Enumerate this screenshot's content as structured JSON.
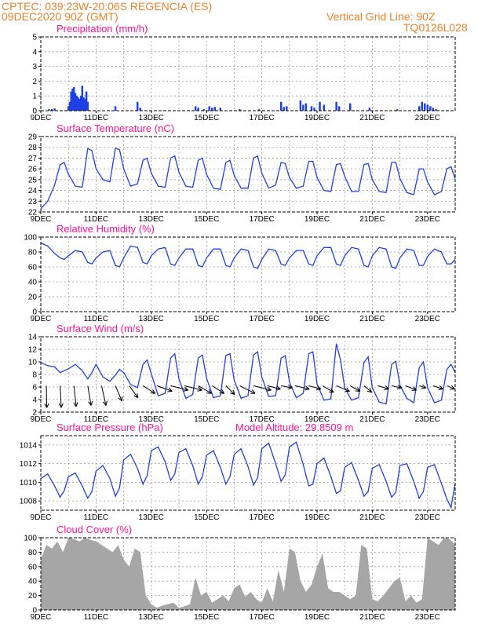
{
  "header": {
    "line1": "CPTEC:   039:23W-20:06S   REGENCIA (ES)",
    "line2": "09DEC2020 90Z (GMT)",
    "grid_note": "Vertical Grid Line: 90Z",
    "run_code": "TQ0126L028"
  },
  "colors": {
    "header": "#e8822a",
    "title": "#ff1493",
    "line": "#2040e0",
    "bar": "#1f3fe6",
    "cloud": "#a6a6a6",
    "grid": "#999999"
  },
  "chart_data": [
    {
      "type": "bar",
      "title": "Precipitation  (mm/h)",
      "ylim": [
        0,
        5
      ],
      "yticks": [
        0,
        1,
        2,
        3,
        4,
        5
      ],
      "x_domain_days": [
        9,
        24
      ],
      "x_ticks": [
        "9DEC",
        "11DEC",
        "13DEC",
        "15DEC",
        "17DEC",
        "19DEC",
        "21DEC",
        "23DEC"
      ],
      "bar_width_days": 0.07,
      "x": [
        9.3,
        9.4,
        9.5,
        10.0,
        10.05,
        10.1,
        10.15,
        10.2,
        10.25,
        10.3,
        10.35,
        10.4,
        10.45,
        10.5,
        10.55,
        10.6,
        10.65,
        10.7,
        11.7,
        12.5,
        12.6,
        14.6,
        14.7,
        14.9,
        15.1,
        15.2,
        15.3,
        15.5,
        16.2,
        16.9,
        17.7,
        17.8,
        17.9,
        18.4,
        18.5,
        18.6,
        18.8,
        18.9,
        19.1,
        19.25,
        19.7,
        19.8,
        20.2,
        20.9,
        21.9,
        22.7,
        22.8,
        22.9,
        23.0,
        23.1,
        23.2,
        23.3
      ],
      "values": [
        0.1,
        0.1,
        0.15,
        0.3,
        0.6,
        1.3,
        1.5,
        1.6,
        1.2,
        1.0,
        0.9,
        0.8,
        1.0,
        1.7,
        0.9,
        0.8,
        1.3,
        0.6,
        0.3,
        0.6,
        0.2,
        0.3,
        0.2,
        0.1,
        0.3,
        0.2,
        0.25,
        0.2,
        0.1,
        0.1,
        0.6,
        0.25,
        0.3,
        0.7,
        0.4,
        0.5,
        0.3,
        0.2,
        0.6,
        0.4,
        0.6,
        0.3,
        0.5,
        0.2,
        0.1,
        0.3,
        0.6,
        0.5,
        0.4,
        0.3,
        0.2,
        0.1
      ]
    },
    {
      "type": "line",
      "title": "Surface Temperature  (nC)",
      "ylim": [
        22,
        29
      ],
      "yticks": [
        22,
        23,
        24,
        25,
        26,
        27,
        28,
        29
      ],
      "x_domain_days": [
        9,
        24
      ],
      "x_ticks": [
        "9DEC",
        "11DEC",
        "13DEC",
        "15DEC",
        "17DEC",
        "19DEC",
        "21DEC",
        "23DEC"
      ],
      "x": [
        9.0,
        9.25,
        9.5,
        9.7,
        9.85,
        10.0,
        10.25,
        10.5,
        10.7,
        10.85,
        11.0,
        11.25,
        11.5,
        11.7,
        11.85,
        12.0,
        12.25,
        12.5,
        12.7,
        12.85,
        13.0,
        13.25,
        13.5,
        13.7,
        13.85,
        14.0,
        14.25,
        14.5,
        14.7,
        14.85,
        15.0,
        15.25,
        15.5,
        15.7,
        15.85,
        16.0,
        16.25,
        16.5,
        16.7,
        16.85,
        17.0,
        17.25,
        17.5,
        17.7,
        17.85,
        18.0,
        18.25,
        18.5,
        18.7,
        18.85,
        19.0,
        19.25,
        19.5,
        19.7,
        19.85,
        20.0,
        20.25,
        20.5,
        20.7,
        20.85,
        21.0,
        21.25,
        21.5,
        21.7,
        21.85,
        22.0,
        22.25,
        22.5,
        22.7,
        22.85,
        23.0,
        23.25,
        23.5,
        23.7,
        23.85,
        24.0
      ],
      "values": [
        22.3,
        23.0,
        24.5,
        26.4,
        26.6,
        25.5,
        24.4,
        24.3,
        27.9,
        27.7,
        26.0,
        25.0,
        24.8,
        27.9,
        27.8,
        26.0,
        24.4,
        24.6,
        26.8,
        27.0,
        25.6,
        24.4,
        24.3,
        27.0,
        27.2,
        25.7,
        24.4,
        24.3,
        26.8,
        27.0,
        25.5,
        24.2,
        24.1,
        26.6,
        26.8,
        25.4,
        24.2,
        24.2,
        27.0,
        27.2,
        25.6,
        24.2,
        24.5,
        26.6,
        26.5,
        25.2,
        24.2,
        24.4,
        26.7,
        26.7,
        25.2,
        24.0,
        23.9,
        26.4,
        26.5,
        25.3,
        23.9,
        23.9,
        26.4,
        26.5,
        25.0,
        23.9,
        23.8,
        26.6,
        26.6,
        25.1,
        23.8,
        23.6,
        26.0,
        26.0,
        24.8,
        23.6,
        23.9,
        26.0,
        26.2,
        25.1
      ]
    },
    {
      "type": "line",
      "title": "Relative Humidity  (%)",
      "ylim": [
        0,
        100
      ],
      "yticks": [
        0,
        20,
        40,
        60,
        80,
        100
      ],
      "x_domain_days": [
        9,
        24
      ],
      "x_ticks": [
        "9DEC",
        "11DEC",
        "13DEC",
        "15DEC",
        "17DEC",
        "19DEC",
        "21DEC",
        "23DEC"
      ],
      "x": [
        9.0,
        9.25,
        9.5,
        9.7,
        9.85,
        10.0,
        10.25,
        10.5,
        10.7,
        10.85,
        11.0,
        11.25,
        11.5,
        11.7,
        11.85,
        12.0,
        12.25,
        12.5,
        12.7,
        12.85,
        13.0,
        13.25,
        13.5,
        13.7,
        13.85,
        14.0,
        14.25,
        14.5,
        14.7,
        14.85,
        15.0,
        15.25,
        15.5,
        15.7,
        15.85,
        16.0,
        16.25,
        16.5,
        16.7,
        16.85,
        17.0,
        17.25,
        17.5,
        17.7,
        17.85,
        18.0,
        18.25,
        18.5,
        18.7,
        18.85,
        19.0,
        19.25,
        19.5,
        19.7,
        19.85,
        20.0,
        20.25,
        20.5,
        20.7,
        20.85,
        21.0,
        21.25,
        21.5,
        21.7,
        21.85,
        22.0,
        22.25,
        22.5,
        22.7,
        22.85,
        23.0,
        23.25,
        23.5,
        23.7,
        23.85,
        24.0
      ],
      "values": [
        92,
        88,
        78,
        72,
        70,
        75,
        82,
        80,
        66,
        64,
        72,
        80,
        82,
        62,
        60,
        72,
        88,
        86,
        66,
        64,
        75,
        84,
        86,
        64,
        62,
        72,
        84,
        84,
        62,
        60,
        72,
        84,
        84,
        62,
        60,
        72,
        84,
        82,
        60,
        58,
        70,
        84,
        82,
        64,
        62,
        72,
        82,
        82,
        64,
        62,
        75,
        86,
        86,
        64,
        62,
        75,
        86,
        84,
        62,
        60,
        75,
        86,
        84,
        60,
        58,
        72,
        84,
        82,
        62,
        62,
        74,
        84,
        80,
        64,
        64,
        70
      ]
    },
    {
      "type": "line",
      "title": "Surface Wind  (m/s)",
      "ylim": [
        2,
        14
      ],
      "yticks": [
        2,
        4,
        6,
        8,
        10,
        12,
        14
      ],
      "x_domain_days": [
        9,
        24
      ],
      "x_ticks": [
        "9DEC",
        "11DEC",
        "13DEC",
        "15DEC",
        "17DEC",
        "19DEC",
        "21DEC",
        "23DEC"
      ],
      "x": [
        9.0,
        9.25,
        9.5,
        9.7,
        9.85,
        10.0,
        10.25,
        10.5,
        10.7,
        10.85,
        11.0,
        11.25,
        11.5,
        11.7,
        11.85,
        12.0,
        12.25,
        12.5,
        12.7,
        12.85,
        13.0,
        13.25,
        13.5,
        13.7,
        13.85,
        14.0,
        14.25,
        14.5,
        14.7,
        14.85,
        15.0,
        15.25,
        15.5,
        15.7,
        15.85,
        16.0,
        16.25,
        16.5,
        16.7,
        16.85,
        17.0,
        17.25,
        17.5,
        17.7,
        17.85,
        18.0,
        18.25,
        18.5,
        18.7,
        18.85,
        19.0,
        19.25,
        19.5,
        19.7,
        19.85,
        20.0,
        20.25,
        20.5,
        20.7,
        20.85,
        21.0,
        21.25,
        21.5,
        21.7,
        21.85,
        22.0,
        22.25,
        22.5,
        22.7,
        22.85,
        23.0,
        23.25,
        23.5,
        23.7,
        23.85,
        24.0
      ],
      "values": [
        9.9,
        9.4,
        9.2,
        8.3,
        8.6,
        8.9,
        9.6,
        8.6,
        7.3,
        8.3,
        9.6,
        7.6,
        6.9,
        7.9,
        8.8,
        8.3,
        6.4,
        5.9,
        9.6,
        10.3,
        8.1,
        4.6,
        5.0,
        10.6,
        11.3,
        7.3,
        4.2,
        4.8,
        10.6,
        11.1,
        7.4,
        4.3,
        4.6,
        11.0,
        11.3,
        7.1,
        4.2,
        4.6,
        11.1,
        11.6,
        7.6,
        4.5,
        4.6,
        10.6,
        11.0,
        6.8,
        4.3,
        5.0,
        11.3,
        11.6,
        6.5,
        3.9,
        4.1,
        12.9,
        10.3,
        5.9,
        3.9,
        4.3,
        9.9,
        10.8,
        5.9,
        3.6,
        3.3,
        9.6,
        10.1,
        6.3,
        4.2,
        3.5,
        9.1,
        10.0,
        5.9,
        3.5,
        3.9,
        8.8,
        9.6,
        8.3
      ],
      "arrows_x": [
        9.2,
        9.7,
        10.2,
        10.7,
        11.2,
        11.7,
        12.2,
        12.7,
        13.2,
        13.7,
        14.2,
        14.7,
        15.2,
        15.7,
        16.2,
        16.7,
        17.2,
        17.7,
        18.2,
        18.7,
        19.2,
        19.7,
        20.2,
        20.7,
        21.2,
        21.7,
        22.2,
        22.7,
        23.2,
        23.7
      ],
      "arrows_dx": [
        0.02,
        0.05,
        0.1,
        0.15,
        0.2,
        0.3,
        0.4,
        0.55,
        0.7,
        0.8,
        0.8,
        0.6,
        0.55,
        0.4,
        0.7,
        0.8,
        0.6,
        0.5,
        0.65,
        0.55,
        0.5,
        0.6,
        0.45,
        0.35,
        0.5,
        0.45,
        0.5,
        0.3,
        0.45,
        0.35
      ],
      "arrows_dy": [
        -1.0,
        -1.0,
        -0.95,
        -0.9,
        -0.9,
        -0.7,
        -0.55,
        -0.35,
        -0.25,
        -0.2,
        -0.2,
        -0.35,
        -0.35,
        -0.4,
        -0.35,
        -0.2,
        -0.15,
        -0.1,
        -0.15,
        -0.15,
        -0.3,
        -0.25,
        -0.25,
        -0.3,
        -0.15,
        -0.1,
        -0.2,
        -0.1,
        -0.15,
        -0.15
      ]
    },
    {
      "type": "line",
      "title": "Surface Pressure  (hPa)",
      "note": "Model Altitude:  29.8509  m",
      "ylim": [
        1007,
        1015
      ],
      "yticks": [
        1008,
        1010,
        1012,
        1014
      ],
      "x_domain_days": [
        9,
        24
      ],
      "x_ticks": [
        "9DEC",
        "11DEC",
        "13DEC",
        "15DEC",
        "17DEC",
        "19DEC",
        "21DEC",
        "23DEC"
      ],
      "x": [
        9.0,
        9.25,
        9.5,
        9.7,
        9.85,
        10.0,
        10.25,
        10.5,
        10.7,
        10.85,
        11.0,
        11.25,
        11.5,
        11.7,
        11.85,
        12.0,
        12.25,
        12.5,
        12.7,
        12.85,
        13.0,
        13.25,
        13.5,
        13.7,
        13.85,
        14.0,
        14.25,
        14.5,
        14.7,
        14.85,
        15.0,
        15.25,
        15.5,
        15.7,
        15.85,
        16.0,
        16.25,
        16.5,
        16.7,
        16.85,
        17.0,
        17.25,
        17.5,
        17.7,
        17.85,
        18.0,
        18.25,
        18.5,
        18.7,
        18.85,
        19.0,
        19.25,
        19.5,
        19.7,
        19.85,
        20.0,
        20.25,
        20.5,
        20.7,
        20.85,
        21.0,
        21.25,
        21.5,
        21.7,
        21.85,
        22.0,
        22.25,
        22.5,
        22.7,
        22.85,
        23.0,
        23.25,
        23.5,
        23.7,
        23.85,
        24.0
      ],
      "values": [
        1010.4,
        1010.9,
        1009.6,
        1008.4,
        1009.1,
        1010.6,
        1011.0,
        1009.6,
        1008.3,
        1009.0,
        1011.2,
        1011.8,
        1010.4,
        1008.5,
        1009.4,
        1012.4,
        1013.0,
        1011.5,
        1009.8,
        1010.7,
        1013.4,
        1013.8,
        1012.2,
        1010.2,
        1010.9,
        1013.2,
        1013.6,
        1011.8,
        1009.8,
        1010.6,
        1012.9,
        1013.4,
        1011.6,
        1009.8,
        1010.6,
        1013.0,
        1013.6,
        1011.7,
        1009.7,
        1010.5,
        1013.6,
        1014.2,
        1012.0,
        1010.1,
        1010.8,
        1013.8,
        1014.3,
        1011.9,
        1009.6,
        1009.8,
        1012.0,
        1012.6,
        1010.6,
        1008.8,
        1009.1,
        1011.6,
        1012.1,
        1010.2,
        1008.5,
        1009.0,
        1011.5,
        1011.9,
        1010.1,
        1008.4,
        1008.9,
        1011.8,
        1012.0,
        1010.1,
        1008.3,
        1009.0,
        1011.6,
        1011.9,
        1009.9,
        1008.2,
        1007.3,
        1009.9
      ]
    },
    {
      "type": "area",
      "title": "Cloud Cover  (%)",
      "ylim": [
        0,
        100
      ],
      "yticks": [
        0,
        20,
        40,
        60,
        80,
        100
      ],
      "x_domain_days": [
        9,
        24
      ],
      "x_ticks": [
        "9DEC",
        "11DEC",
        "13DEC",
        "15DEC",
        "17DEC",
        "19DEC",
        "21DEC",
        "23DEC"
      ],
      "x": [
        9.0,
        9.2,
        9.4,
        9.6,
        9.8,
        10.0,
        10.2,
        10.4,
        10.6,
        10.8,
        11.0,
        11.2,
        11.4,
        11.6,
        11.8,
        12.0,
        12.2,
        12.4,
        12.6,
        12.8,
        13.0,
        13.2,
        13.4,
        13.6,
        13.8,
        14.0,
        14.2,
        14.4,
        14.6,
        14.8,
        15.0,
        15.2,
        15.4,
        15.6,
        15.8,
        16.0,
        16.2,
        16.4,
        16.6,
        16.8,
        17.0,
        17.2,
        17.4,
        17.6,
        17.8,
        18.0,
        18.2,
        18.4,
        18.6,
        18.8,
        19.0,
        19.2,
        19.4,
        19.6,
        19.8,
        20.0,
        20.2,
        20.4,
        20.6,
        20.8,
        21.0,
        21.2,
        21.4,
        21.6,
        21.8,
        22.0,
        22.2,
        22.4,
        22.6,
        22.8,
        23.0,
        23.2,
        23.4,
        23.6,
        23.8,
        24.0
      ],
      "values": [
        70,
        90,
        85,
        95,
        80,
        100,
        98,
        95,
        100,
        97,
        95,
        90,
        85,
        80,
        90,
        70,
        60,
        85,
        80,
        20,
        8,
        3,
        6,
        8,
        10,
        3,
        5,
        8,
        45,
        20,
        25,
        10,
        15,
        20,
        12,
        30,
        35,
        18,
        25,
        15,
        10,
        30,
        12,
        55,
        25,
        85,
        80,
        40,
        25,
        35,
        60,
        78,
        30,
        25,
        25,
        20,
        15,
        20,
        90,
        85,
        15,
        12,
        20,
        30,
        40,
        45,
        12,
        20,
        10,
        15,
        100,
        95,
        90,
        100,
        98,
        90
      ]
    }
  ]
}
